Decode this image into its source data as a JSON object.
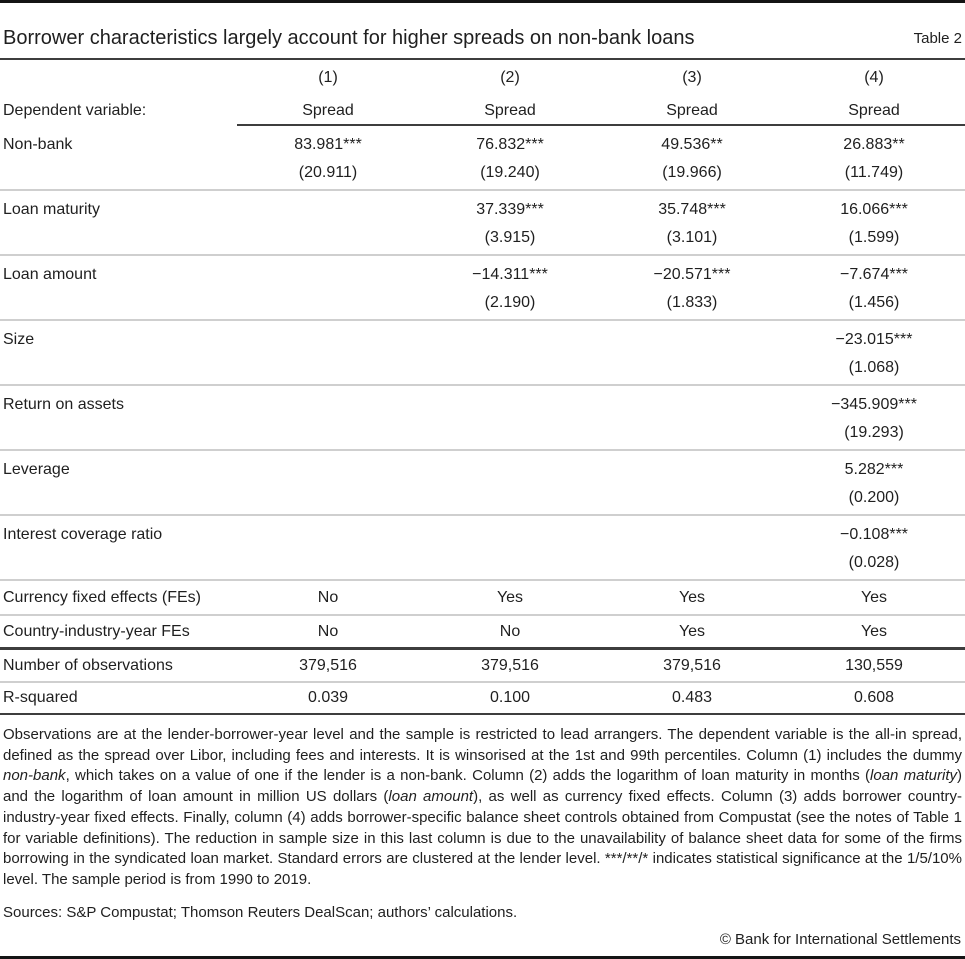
{
  "header": {
    "title": "Borrower characteristics largely account for higher spreads on non-bank loans",
    "table_label": "Table 2"
  },
  "table": {
    "column_numbers": [
      "(1)",
      "(2)",
      "(3)",
      "(4)"
    ],
    "dependent_variable_label": "Dependent variable:",
    "dependent_variable_values": [
      "Spread",
      "Spread",
      "Spread",
      "Spread"
    ],
    "coefficient_rows": [
      {
        "label": "Non-bank",
        "values": [
          "83.981***",
          "76.832***",
          "49.536**",
          "26.883**"
        ],
        "se": [
          "(20.911)",
          "(19.240)",
          "(19.966)",
          "(11.749)"
        ]
      },
      {
        "label": "Loan maturity",
        "values": [
          "",
          "37.339***",
          "35.748***",
          "16.066***"
        ],
        "se": [
          "",
          "(3.915)",
          "(3.101)",
          "(1.599)"
        ]
      },
      {
        "label": "Loan amount",
        "values": [
          "",
          "−14.311***",
          "−20.571***",
          "−7.674***"
        ],
        "se": [
          "",
          "(2.190)",
          "(1.833)",
          "(1.456)"
        ]
      },
      {
        "label": "Size",
        "values": [
          "",
          "",
          "",
          "−23.015***"
        ],
        "se": [
          "",
          "",
          "",
          "(1.068)"
        ]
      },
      {
        "label": "Return on assets",
        "values": [
          "",
          "",
          "",
          "−345.909***"
        ],
        "se": [
          "",
          "",
          "",
          "(19.293)"
        ]
      },
      {
        "label": "Leverage",
        "values": [
          "",
          "",
          "",
          "5.282***"
        ],
        "se": [
          "",
          "",
          "",
          "(0.200)"
        ]
      },
      {
        "label": "Interest coverage ratio",
        "values": [
          "",
          "",
          "",
          "−0.108***"
        ],
        "se": [
          "",
          "",
          "",
          "(0.028)"
        ]
      }
    ],
    "fixed_effect_rows": [
      {
        "label": "Currency fixed effects (FEs)",
        "values": [
          "No",
          "Yes",
          "Yes",
          "Yes"
        ]
      },
      {
        "label": "Country-industry-year FEs",
        "values": [
          "No",
          "No",
          "Yes",
          "Yes"
        ]
      }
    ],
    "stat_rows": [
      {
        "label": "Number of observations",
        "values": [
          "379,516",
          "379,516",
          "379,516",
          "130,559"
        ]
      },
      {
        "label": "R-squared",
        "values": [
          "0.039",
          "0.100",
          "0.483",
          "0.608"
        ]
      }
    ]
  },
  "notes": {
    "segments": [
      {
        "text": "Observations are at the lender-borrower-year level and the sample is restricted to lead arrangers. The dependent variable is the all-in spread, defined as the spread over Libor, including fees and interests. It is winsorised at the 1st and 99th percentiles. Column (1) includes the dummy ",
        "italic": false
      },
      {
        "text": "non-bank",
        "italic": true
      },
      {
        "text": ", which takes on a value of one if the lender is a non-bank. Column (2) adds the logarithm of loan maturity in months (",
        "italic": false
      },
      {
        "text": "loan maturity",
        "italic": true
      },
      {
        "text": ") and the logarithm of loan amount in million US dollars (",
        "italic": false
      },
      {
        "text": "loan amount",
        "italic": true
      },
      {
        "text": "), as well as currency fixed effects. Column (3) adds borrower country-industry-year fixed effects. Finally, column (4) adds borrower-specific balance sheet controls obtained from Compustat (see the notes of Table 1 for variable definitions). The reduction in sample size in this last column is due to the unavailability of balance sheet data for some of the firms borrowing in the syndicated loan market. Standard errors are clustered at the lender level. ***/**/* indicates statistical significance at the 1/5/10% level. The sample period is from 1990 to 2019.",
        "italic": false
      }
    ]
  },
  "footer": {
    "sources": "Sources: S&P Compustat; Thomson Reuters DealScan; authors’ calculations.",
    "copyright": "© Bank for International Settlements"
  },
  "colors": {
    "rule_black": "#141414",
    "rule_dark": "#3d3d3d",
    "rule_light": "#cfcfcf",
    "text": "#1f1f1f",
    "background": "#ffffff"
  }
}
